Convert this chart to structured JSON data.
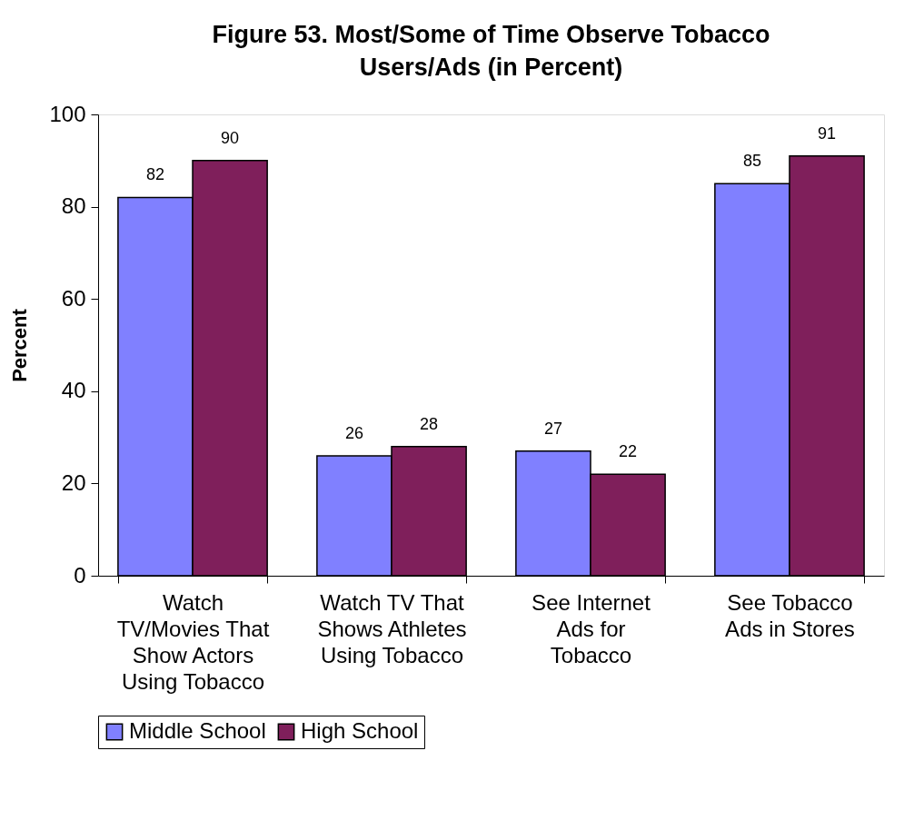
{
  "chart_data": {
    "type": "bar",
    "title": "Figure 53.  Most/Some of Time Observe Tobacco Users/Ads (in Percent)",
    "ylabel": "Percent",
    "categories": [
      "Watch TV/Movies That Show Actors Using Tobacco",
      "Watch TV That Shows Athletes Using Tobacco",
      "See Internet Ads for Tobacco",
      "See Tobacco Ads in Stores"
    ],
    "series": [
      {
        "name": "Middle School",
        "color": "#8080ff",
        "values": [
          82,
          26,
          27,
          85
        ]
      },
      {
        "name": "High School",
        "color": "#7f1f5b",
        "values": [
          90,
          28,
          22,
          91
        ]
      }
    ],
    "ylim": [
      0,
      100
    ],
    "yticks": [
      0,
      20,
      40,
      60,
      80,
      100
    ],
    "grid": false,
    "legend": "bottom",
    "data_labels": true
  }
}
